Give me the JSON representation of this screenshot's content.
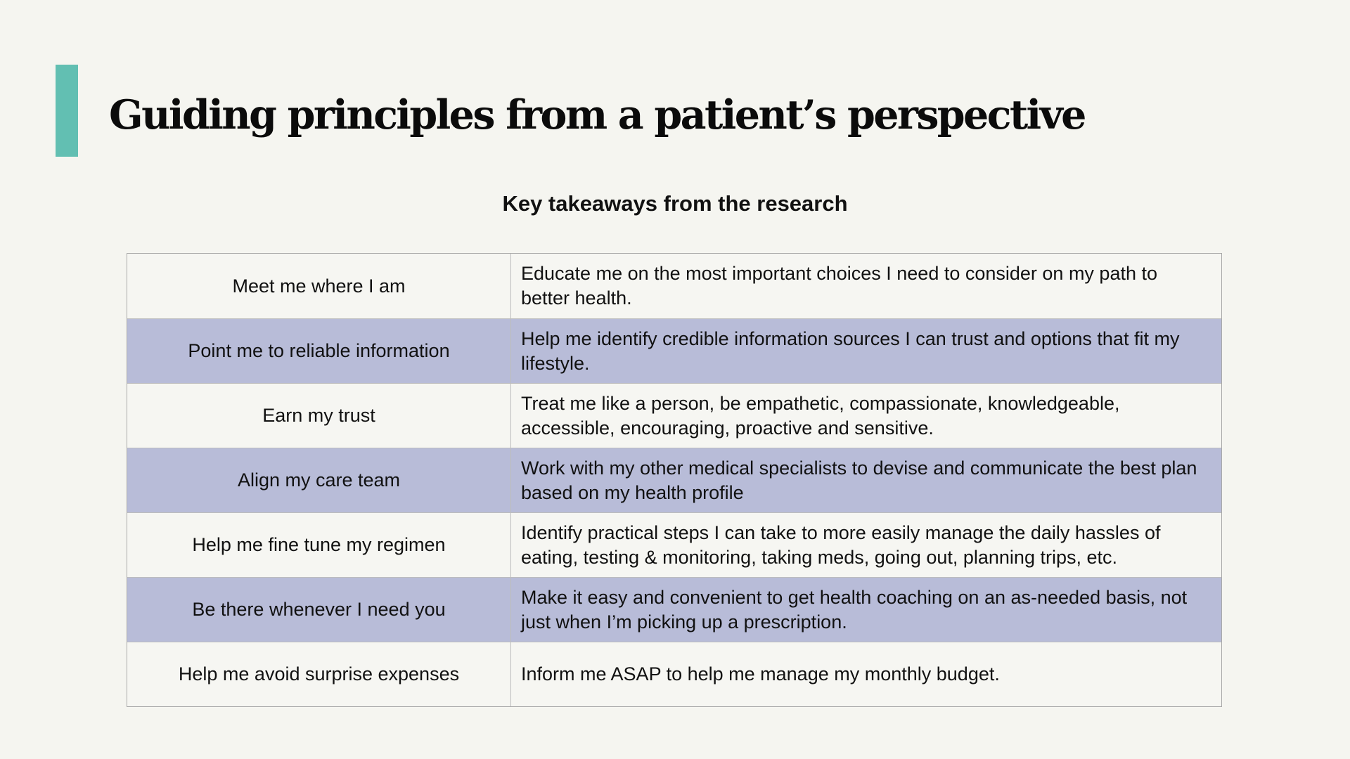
{
  "slide": {
    "title": "Guiding principles from a patient’s perspective",
    "subtitle": "Key takeaways from the research",
    "accent_color": "#62bfb2",
    "row_shade_color": "#b8bcd8"
  },
  "table": {
    "rows": [
      {
        "principle": "Meet me where I am",
        "detail": "Educate me on the most important choices I need to consider on my path to better health."
      },
      {
        "principle": "Point me to reliable information",
        "detail": "Help me identify credible information sources I can trust and options that fit my lifestyle."
      },
      {
        "principle": "Earn my trust",
        "detail": "Treat me like a person, be empathetic, compassionate, knowledgeable, accessible, encouraging, proactive and sensitive."
      },
      {
        "principle": "Align my care team",
        "detail": "Work with my other medical specialists to devise and communicate the best plan based on my health profile"
      },
      {
        "principle": "Help me fine tune my regimen",
        "detail": "Identify practical steps I can take to more easily manage the daily hassles of eating, testing & monitoring, taking meds, going out, planning trips, etc."
      },
      {
        "principle": "Be there whenever I need you",
        "detail": "Make it easy and convenient to get health coaching on an as-needed basis, not just when I’m picking up a prescription."
      },
      {
        "principle": "Help me avoid surprise expenses",
        "detail": "Inform me ASAP to help me manage my monthly budget."
      }
    ]
  }
}
